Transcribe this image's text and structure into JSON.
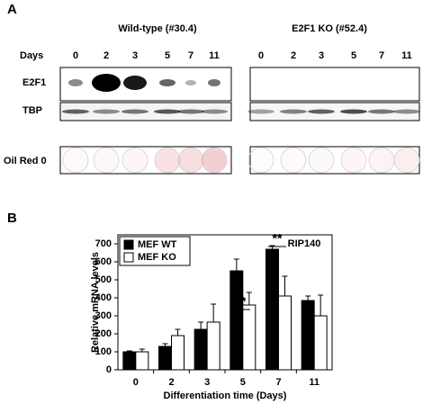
{
  "panel_labels": [
    "A",
    "B"
  ],
  "blot_panel": {
    "row_labels": [
      "Days",
      "E2F1",
      "TBP",
      "Oil Red 0"
    ],
    "groups": [
      {
        "title": "Wild-type (#30.4)",
        "days": [
          "0",
          "2",
          "3",
          "5",
          "7",
          "11"
        ]
      },
      {
        "title": "E2F1 KO (#52.4)",
        "days": [
          "0",
          "2",
          "3",
          "5",
          "7",
          "11"
        ]
      }
    ]
  },
  "chart_data": {
    "type": "bar",
    "annotation_title": "RIP140",
    "annotations": [
      "**",
      "**"
    ],
    "x_label": "Differentiation time (Days)",
    "y_label": "Relative mRNA levels",
    "categories": [
      "0",
      "2",
      "3",
      "5",
      "7",
      "11"
    ],
    "series": [
      {
        "name": "MEF WT",
        "color": "#000000",
        "values": [
          100,
          130,
          225,
          550,
          670,
          385
        ],
        "errors": [
          5,
          15,
          40,
          65,
          20,
          25
        ]
      },
      {
        "name": "MEF KO",
        "color": "#ffffff",
        "values": [
          100,
          190,
          265,
          360,
          410,
          300
        ],
        "errors": [
          15,
          35,
          100,
          70,
          110,
          115
        ]
      }
    ],
    "ylim": [
      0,
      750
    ],
    "yticks": [
      0,
      100,
      200,
      300,
      400,
      500,
      600,
      700
    ],
    "legend": "upper left"
  }
}
